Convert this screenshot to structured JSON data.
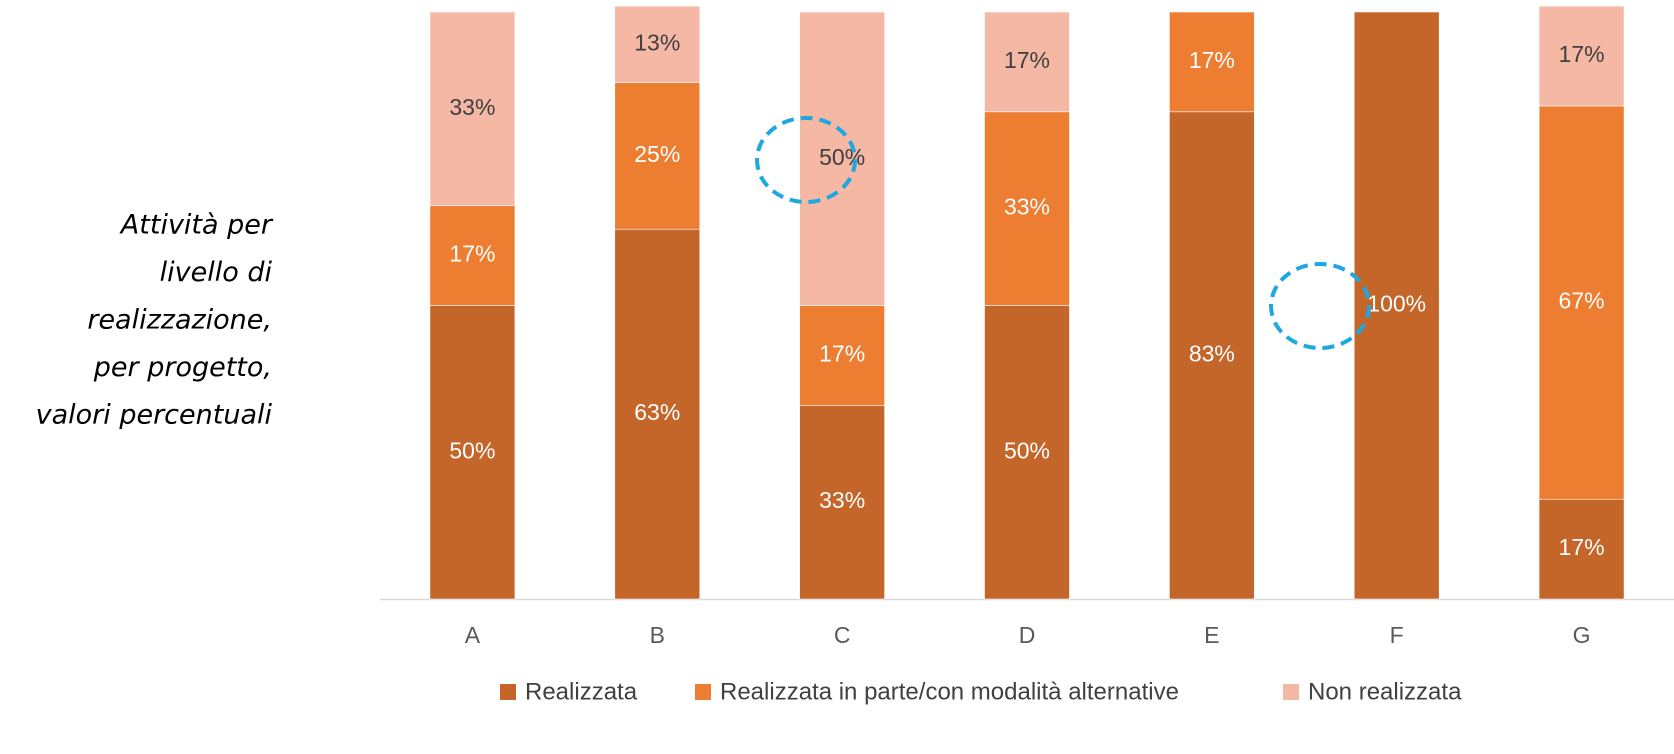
{
  "chart_data": {
    "type": "stacked-bar",
    "title": [
      "Attività per",
      "livello di",
      "realizzazione,",
      "per progetto,",
      "valori percentuali"
    ],
    "categories": [
      "A",
      "B",
      "C",
      "D",
      "E",
      "F",
      "G"
    ],
    "ylim": [
      0,
      100
    ],
    "series": [
      {
        "name": "Realizzata",
        "color": "#c4652a",
        "label_color": "#ffffff",
        "values": [
          50,
          63,
          33,
          50,
          83,
          100,
          17
        ],
        "value_labels": [
          "50%",
          "63%",
          "33%",
          "50%",
          "83%",
          "100%",
          "17%"
        ]
      },
      {
        "name": "Realizzata in parte/con modalità alternative",
        "color": "#ed7d31",
        "label_color": "#ffffff",
        "values": [
          17,
          25,
          17,
          33,
          17,
          null,
          67
        ],
        "value_labels": [
          "17%",
          "25%",
          "17%",
          "33%",
          "17%",
          null,
          "67%"
        ]
      },
      {
        "name": "Non realizzata",
        "color": "#f4b8a4",
        "label_color": "#404040",
        "values": [
          33,
          13,
          50,
          17,
          null,
          null,
          17
        ],
        "value_labels": [
          "33%",
          "13%",
          "50%",
          "17%",
          null,
          null,
          "17%"
        ]
      }
    ]
  }
}
